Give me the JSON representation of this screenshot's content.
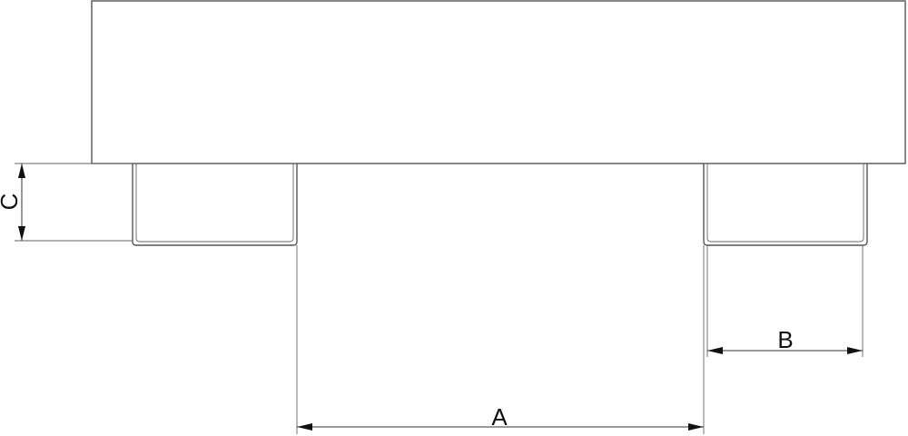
{
  "dimensions": {
    "a_label": "A",
    "b_label": "B",
    "c_label": "C"
  }
}
